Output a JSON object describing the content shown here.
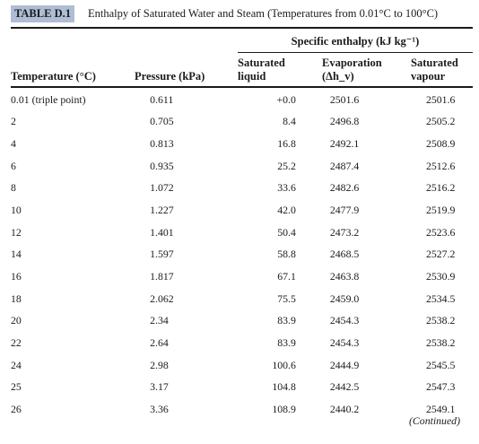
{
  "table_tag": "TABLE D.1",
  "caption": "Enthalpy of Saturated Water and Steam (Temperatures from 0.01°C to 100°C)",
  "spec_header": "Specific enthalpy (kJ kg⁻¹)",
  "headers": {
    "temperature": "Temperature (°C)",
    "pressure": "Pressure (kPa)",
    "sat_liquid": [
      "Saturated",
      "liquid"
    ],
    "evaporation": [
      "Evaporation",
      "(Δh_v)"
    ],
    "sat_vapour": [
      "Saturated",
      "vapour"
    ]
  },
  "rows": [
    [
      "0.01 (triple point)",
      "0.611",
      "+0.0",
      "2501.6",
      "2501.6"
    ],
    [
      "2",
      "0.705",
      "8.4",
      "2496.8",
      "2505.2"
    ],
    [
      "4",
      "0.813",
      "16.8",
      "2492.1",
      "2508.9"
    ],
    [
      "6",
      "0.935",
      "25.2",
      "2487.4",
      "2512.6"
    ],
    [
      "8",
      "1.072",
      "33.6",
      "2482.6",
      "2516.2"
    ],
    [
      "10",
      "1.227",
      "42.0",
      "2477.9",
      "2519.9"
    ],
    [
      "12",
      "1.401",
      "50.4",
      "2473.2",
      "2523.6"
    ],
    [
      "14",
      "1.597",
      "58.8",
      "2468.5",
      "2527.2"
    ],
    [
      "16",
      "1.817",
      "67.1",
      "2463.8",
      "2530.9"
    ],
    [
      "18",
      "2.062",
      "75.5",
      "2459.0",
      "2534.5"
    ],
    [
      "20",
      "2.34",
      "83.9",
      "2454.3",
      "2538.2"
    ],
    [
      "22",
      "2.64",
      "83.9",
      "2454.3",
      "2538.2"
    ],
    [
      "24",
      "2.98",
      "100.6",
      "2444.9",
      "2545.5"
    ],
    [
      "25",
      "3.17",
      "104.8",
      "2442.5",
      "2547.3"
    ],
    [
      "26",
      "3.36",
      "108.9",
      "2440.2",
      "2549.1"
    ]
  ],
  "continued": "(Continued)"
}
